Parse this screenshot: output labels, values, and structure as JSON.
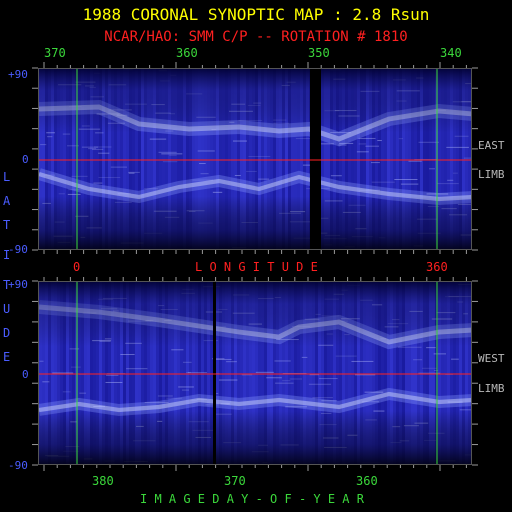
{
  "title": "1988 CORONAL SYNOPTIC MAP : 2.8 Rsun",
  "subtitle": "NCAR/HAO: SMM C/P -- ROTATION # 1810",
  "top_axis_ticks": [
    "370",
    "360",
    "350",
    "340"
  ],
  "bottom_axis_ticks": [
    "380",
    "370",
    "360"
  ],
  "longitude_ticks": [
    "0",
    "360"
  ],
  "longitude_label": "L O N G I T U D E",
  "xlabel": "I M A G E   D A Y - O F - Y E A R",
  "latitude_letters": [
    "L",
    "A",
    "T",
    "I",
    "T",
    "U",
    "D",
    "E"
  ],
  "top_panel": {
    "lat_max": "+90",
    "lat_zero": "0",
    "lat_min": "-90",
    "side_label_1": "EAST",
    "side_label_2": "LIMB"
  },
  "bottom_panel": {
    "lat_max": "+90",
    "lat_zero": "0",
    "lat_min": "-90",
    "side_label_1": "WEST",
    "side_label_2": "LIMB"
  },
  "colors": {
    "title": "#ffff00",
    "subtitle": "#ff2020",
    "equator": "#ff2020",
    "meridian": "#3bd83b",
    "map_base": "#2a2ab8"
  }
}
